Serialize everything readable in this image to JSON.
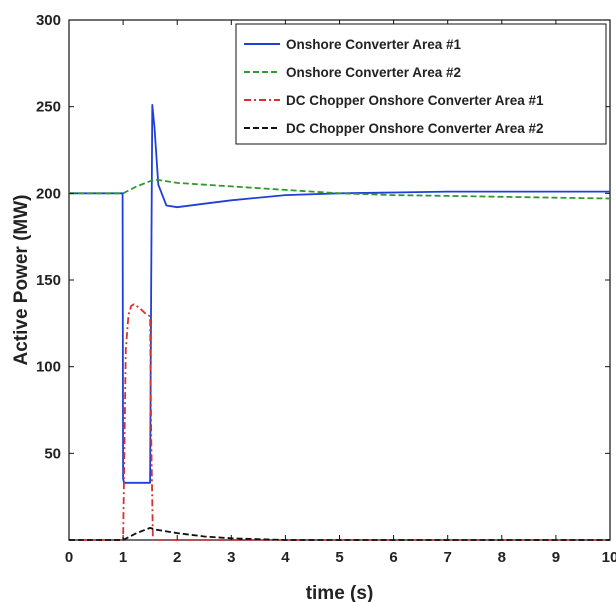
{
  "chart_data": {
    "type": "line",
    "title": "",
    "xlabel": "time (s)",
    "ylabel": "Active Power (MW)",
    "xlim": [
      0,
      10
    ],
    "ylim": [
      0,
      300
    ],
    "xticks": [
      "0",
      "1",
      "2",
      "3",
      "4",
      "5",
      "6",
      "7",
      "8",
      "9",
      "10"
    ],
    "yticks": [
      "50",
      "100",
      "150",
      "200",
      "250",
      "300"
    ],
    "grid": false,
    "legend_position": "top-right",
    "series": [
      {
        "name": "Onshore Converter Area #1",
        "color": "#1f3fd6",
        "style": "solid",
        "x": [
          0,
          0.99,
          1.0,
          1.02,
          1.5,
          1.52,
          1.54,
          1.58,
          1.65,
          1.8,
          2.0,
          2.5,
          3,
          4,
          5,
          6,
          7,
          8,
          9,
          10
        ],
        "y": [
          200,
          200,
          35,
          33,
          33,
          150,
          251,
          238,
          205,
          193,
          192,
          194,
          196,
          199,
          200,
          200.5,
          201,
          201,
          201,
          201
        ]
      },
      {
        "name": "Onshore Converter Area #2",
        "color": "#2f9a2f",
        "style": "dashed",
        "x": [
          0,
          1.0,
          1.25,
          1.5,
          1.6,
          2.0,
          3,
          4,
          5,
          6,
          7,
          8,
          9,
          10
        ],
        "y": [
          200,
          200,
          204,
          207,
          208,
          206,
          204,
          202,
          200,
          199,
          198.5,
          198,
          197.5,
          197
        ]
      },
      {
        "name": "DC Chopper Onshore Converter Area #1",
        "color": "#d93030",
        "style": "dashdot",
        "x": [
          0,
          0.99,
          1.0,
          1.05,
          1.1,
          1.15,
          1.2,
          1.3,
          1.4,
          1.5,
          1.52,
          1.55,
          10
        ],
        "y": [
          0,
          0,
          0,
          110,
          130,
          135,
          136,
          134,
          131,
          129,
          60,
          0,
          0
        ]
      },
      {
        "name": "DC Chopper Onshore Converter Area #2",
        "color": "#111111",
        "style": "dashed",
        "x": [
          0,
          1.0,
          1.25,
          1.5,
          1.6,
          2.0,
          2.5,
          3,
          4,
          10
        ],
        "y": [
          0,
          0,
          4,
          7,
          6,
          4,
          2,
          1,
          0,
          0
        ]
      }
    ]
  }
}
